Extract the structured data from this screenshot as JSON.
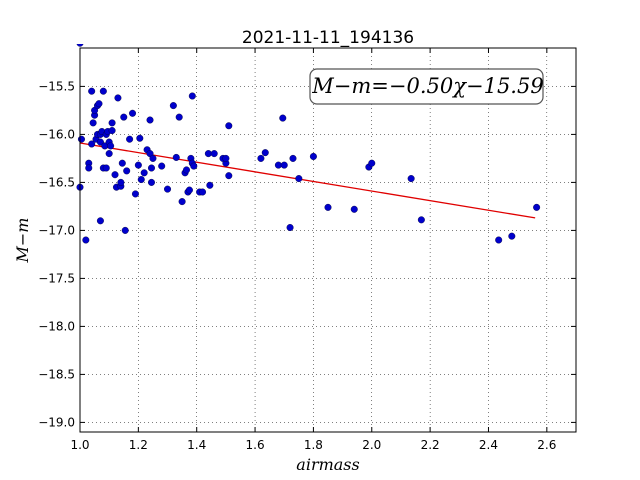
{
  "chart_data": {
    "type": "scatter",
    "title": "2021-11-11_194136",
    "xlabel": "airmass",
    "ylabel": "M−m",
    "xlim": [
      1.0,
      2.7
    ],
    "ylim": [
      -15.1,
      -19.1
    ],
    "y_inverted": true,
    "grid": true,
    "xticks": [
      "1.0",
      "1.2",
      "1.4",
      "1.6",
      "1.8",
      "2.0",
      "2.2",
      "2.4",
      "2.6"
    ],
    "xtick_values": [
      1.0,
      1.2,
      1.4,
      1.6,
      1.8,
      2.0,
      2.2,
      2.4,
      2.6
    ],
    "yticks": [
      "−15.5",
      "−16.0",
      "−16.5",
      "−17.0",
      "−17.5",
      "−18.0",
      "−18.5",
      "−19.0"
    ],
    "ytick_values": [
      -15.5,
      -16.0,
      -16.5,
      -17.0,
      -17.5,
      -18.0,
      -18.5,
      -19.0
    ],
    "annotation": "M−m=−0.50χ−15.59",
    "annotation_placement": "top-right",
    "fit": {
      "slope": -0.5,
      "intercept": -15.59,
      "x_range": [
        1.0,
        2.56
      ],
      "color": "#e00000"
    },
    "point_color": "#0000cc",
    "series": [
      {
        "x": [
          1.0,
          1.0,
          1.005,
          1.02,
          1.03,
          1.03,
          1.04,
          1.04,
          1.045,
          1.05,
          1.05,
          1.055,
          1.06,
          1.06,
          1.065,
          1.07,
          1.07,
          1.07,
          1.075,
          1.08,
          1.08,
          1.085,
          1.09,
          1.09,
          1.095,
          1.1,
          1.1,
          1.105,
          1.11,
          1.11,
          1.12,
          1.125,
          1.13,
          1.14,
          1.14,
          1.145,
          1.15,
          1.155,
          1.16,
          1.17,
          1.18,
          1.19,
          1.2,
          1.205,
          1.21,
          1.22,
          1.23,
          1.24,
          1.24,
          1.245,
          1.245,
          1.25,
          1.28,
          1.3,
          1.32,
          1.33,
          1.34,
          1.35,
          1.36,
          1.365,
          1.37,
          1.375,
          1.38,
          1.385,
          1.385,
          1.39,
          1.41,
          1.42,
          1.44,
          1.445,
          1.46,
          1.49,
          1.5,
          1.5,
          1.51,
          1.51,
          1.62,
          1.635,
          1.68,
          1.695,
          1.7,
          1.72,
          1.73,
          1.75,
          1.8,
          1.85,
          1.94,
          1.99,
          2.0,
          2.135,
          2.17,
          2.435,
          2.48,
          2.565
        ],
        "y": [
          -15.05,
          -16.55,
          -16.05,
          -17.1,
          -16.3,
          -16.35,
          -15.55,
          -16.1,
          -15.88,
          -15.8,
          -15.75,
          -16.05,
          -15.7,
          -16.0,
          -15.68,
          -16.9,
          -16.08,
          -16.0,
          -15.97,
          -15.55,
          -16.35,
          -16.12,
          -16.35,
          -16.0,
          -15.97,
          -16.2,
          -16.08,
          -16.12,
          -15.88,
          -15.96,
          -16.42,
          -16.55,
          -15.62,
          -16.54,
          -16.5,
          -16.3,
          -15.82,
          -17.0,
          -16.38,
          -16.05,
          -15.78,
          -16.62,
          -16.32,
          -16.04,
          -16.47,
          -16.4,
          -16.16,
          -16.2,
          -15.85,
          -16.5,
          -16.35,
          -16.25,
          -16.33,
          -16.57,
          -15.7,
          -16.24,
          -15.82,
          -16.7,
          -16.4,
          -16.37,
          -16.6,
          -16.58,
          -16.25,
          -16.3,
          -15.6,
          -16.33,
          -16.6,
          -16.6,
          -16.2,
          -16.53,
          -16.2,
          -16.25,
          -16.3,
          -16.25,
          -16.43,
          -15.91,
          -16.25,
          -16.19,
          -16.32,
          -15.83,
          -16.32,
          -16.97,
          -16.25,
          -16.46,
          -16.23,
          -16.76,
          -16.78,
          -16.34,
          -16.3,
          -16.46,
          -16.89,
          -17.1,
          -17.06,
          -16.76
        ]
      }
    ]
  }
}
